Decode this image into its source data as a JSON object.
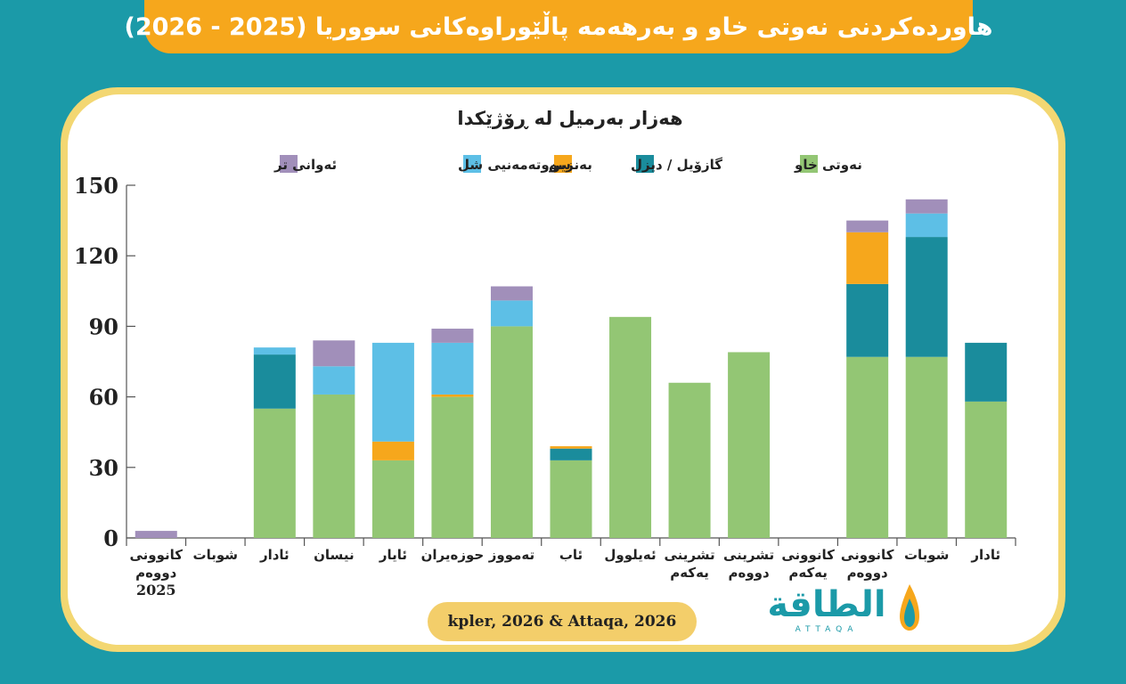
{
  "header": {
    "title": "هاوردەکردنی نەوتی خاو و بەرهەمە پاڵێوراوەکانی سووریا (2025 - 2026)"
  },
  "footer": {
    "source": "kpler, 2026 & Attaqa, 2026",
    "logo_text": "الطاقة",
    "logo_sub": "ATTAQA"
  },
  "colors": {
    "background": "#1b9aa8",
    "banner": "#f6a71c",
    "panel_border": "#f3d772",
    "crude": "#93c674",
    "gasoil": "#1a8c9c",
    "gasoline": "#f6a71c",
    "fuel_oil": "#5dbfe6",
    "other": "#a18fba"
  },
  "chart_data": {
    "type": "bar",
    "stacked": true,
    "title": "هەزار بەرمیل لە ڕۆژێکدا",
    "xlabel": "",
    "ylabel": "",
    "ylim": [
      0,
      150
    ],
    "yticks": [
      0,
      30,
      60,
      90,
      120,
      150
    ],
    "grid": false,
    "legend_position": "top",
    "categories": [
      [
        "کانوونی",
        "دووەم",
        "2025"
      ],
      [
        "شوبات"
      ],
      [
        "ئادار"
      ],
      [
        "نیسان"
      ],
      [
        "ئایار"
      ],
      [
        "حوزەیران"
      ],
      [
        "تەمووز"
      ],
      [
        "ئاب"
      ],
      [
        "ئەیلوول"
      ],
      [
        "تشرینی",
        "یەکەم"
      ],
      [
        "تشرینی",
        "دووەم"
      ],
      [
        "کانوونی",
        "یەکەم"
      ],
      [
        "کانوونی",
        "دووەم"
      ],
      [
        "شوبات"
      ],
      [
        "ئادار"
      ]
    ],
    "series": [
      {
        "name": "نەوتی خاو",
        "color": "#93c674",
        "values": [
          0,
          0,
          55,
          61,
          33,
          60,
          90,
          33,
          94,
          66,
          79,
          0,
          77,
          77,
          58
        ]
      },
      {
        "name": "گازۆیل / دیزل",
        "color": "#1a8c9c",
        "values": [
          0,
          0,
          23,
          0,
          0,
          0,
          0,
          5,
          0,
          0,
          0,
          0,
          31,
          51,
          25
        ]
      },
      {
        "name": "بەنزین",
        "color": "#f6a71c",
        "values": [
          0,
          0,
          0,
          0,
          8,
          1,
          0,
          1,
          0,
          0,
          0,
          0,
          22,
          0,
          0
        ]
      },
      {
        "name": "سووتەمەنیی شل",
        "color": "#5dbfe6",
        "values": [
          0,
          0,
          3,
          12,
          42,
          22,
          11,
          0,
          0,
          0,
          0,
          0,
          0,
          10,
          0
        ]
      },
      {
        "name": "ئەوانی تر",
        "color": "#a18fba",
        "values": [
          3,
          0,
          0,
          11,
          0,
          6,
          6,
          0,
          0,
          0,
          0,
          0,
          5,
          6,
          0
        ]
      }
    ]
  }
}
